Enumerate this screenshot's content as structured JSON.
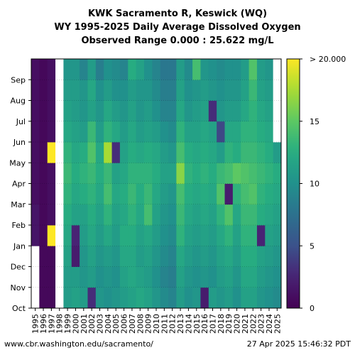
{
  "title_lines": [
    "KWK Sacramento R, Keswick (WQ)",
    "WY 1995-2025 Daily Average Dissolved Oxygen",
    "Observed Range 0.000 : 25.622 mg/L"
  ],
  "footer": {
    "source": "www.cbr.washington.edu/sacramento/",
    "timestamp": "27 Apr 2025 15:46:32 PDT"
  },
  "chart_data": {
    "type": "heatmap",
    "title": "KWK Sacramento R, Keswick (WQ)",
    "subtitle": "WY 1995-2025 Daily Average Dissolved Oxygen",
    "note": "Observed Range 0.000 : 25.622 mg/L",
    "x": [
      "1995",
      "1996",
      "1997",
      "1998",
      "1999",
      "2000",
      "2001",
      "2002",
      "2003",
      "2004",
      "2005",
      "2006",
      "2007",
      "2008",
      "2009",
      "2010",
      "2011",
      "2012",
      "2013",
      "2014",
      "2015",
      "2016",
      "2017",
      "2018",
      "2019",
      "2020",
      "2021",
      "2022",
      "2023",
      "2024",
      "2025"
    ],
    "y": [
      "Oct",
      "Nov",
      "Dec",
      "Jan",
      "Feb",
      "Mar",
      "Apr",
      "May",
      "Jun",
      "Jul",
      "Aug",
      "Sep"
    ],
    "values": [
      [
        null,
        null,
        null,
        1.5,
        1.5,
        1.0,
        1.0,
        1.0,
        1.0,
        1.0,
        1.0,
        1.0
      ],
      [
        0.5,
        0.5,
        0.5,
        0.5,
        0.5,
        0.5,
        0.5,
        0.5,
        0.5,
        0.5,
        0.5,
        0.5
      ],
      [
        0.5,
        0.5,
        0.5,
        22.0,
        1.0,
        1.0,
        1.0,
        22.0,
        1.0,
        1.0,
        1.0,
        1.0
      ],
      [
        null,
        null,
        null,
        null,
        null,
        null,
        null,
        null,
        null,
        null,
        null,
        null
      ],
      [
        11.0,
        11.0,
        11.5,
        12.0,
        12.5,
        13.0,
        13.5,
        13.0,
        12.0,
        11.5,
        11.0,
        10.5
      ],
      [
        11.5,
        11.0,
        2.0,
        2.5,
        11.5,
        12.0,
        12.5,
        12.0,
        11.5,
        11.0,
        11.0,
        10.5
      ],
      [
        11.0,
        10.5,
        10.5,
        11.0,
        11.5,
        12.5,
        13.0,
        12.5,
        11.0,
        10.5,
        10.5,
        9.0
      ],
      [
        3.0,
        11.0,
        11.5,
        12.0,
        12.5,
        13.0,
        13.5,
        14.5,
        13.5,
        11.5,
        12.0,
        11.0
      ],
      [
        10.5,
        10.0,
        10.5,
        11.0,
        11.5,
        12.0,
        12.5,
        12.0,
        11.0,
        10.5,
        10.0,
        8.5
      ],
      [
        10.0,
        10.5,
        11.0,
        12.0,
        13.0,
        14.0,
        13.5,
        17.5,
        13.0,
        12.0,
        11.0,
        10.0
      ],
      [
        10.5,
        10.0,
        10.5,
        11.0,
        11.5,
        12.0,
        11.5,
        3.0,
        12.0,
        11.0,
        10.0,
        9.5
      ],
      [
        11.0,
        11.5,
        12.0,
        12.5,
        12.0,
        12.5,
        12.0,
        11.5,
        11.0,
        10.5,
        10.0,
        9.0
      ],
      [
        11.5,
        12.0,
        12.0,
        12.5,
        13.0,
        13.5,
        13.0,
        12.5,
        12.0,
        11.5,
        11.0,
        12.5
      ],
      [
        12.0,
        11.5,
        11.0,
        11.5,
        12.0,
        12.5,
        13.0,
        12.0,
        11.0,
        10.5,
        10.5,
        11.5
      ],
      [
        11.5,
        11.0,
        11.5,
        12.0,
        14.0,
        13.5,
        13.0,
        12.5,
        11.5,
        11.0,
        10.5,
        10.0
      ],
      [
        10.5,
        10.0,
        10.5,
        11.0,
        11.5,
        12.0,
        12.5,
        12.0,
        11.0,
        10.0,
        9.5,
        9.0
      ],
      [
        9.5,
        9.0,
        9.5,
        10.0,
        10.5,
        11.0,
        11.5,
        11.0,
        10.0,
        9.0,
        8.5,
        8.0
      ],
      [
        9.0,
        8.5,
        9.0,
        9.5,
        10.0,
        10.5,
        11.5,
        10.5,
        9.5,
        9.0,
        8.5,
        8.0
      ],
      [
        11.0,
        11.5,
        12.0,
        13.0,
        13.5,
        14.0,
        16.5,
        14.0,
        13.0,
        12.0,
        11.5,
        11.0
      ],
      [
        10.0,
        10.5,
        11.0,
        11.5,
        12.0,
        12.5,
        13.0,
        12.5,
        11.5,
        10.5,
        10.0,
        9.5
      ],
      [
        10.5,
        10.0,
        10.5,
        11.0,
        11.5,
        12.0,
        12.5,
        12.0,
        11.5,
        11.0,
        10.5,
        14.0
      ],
      [
        2.0,
        10.5,
        11.0,
        11.5,
        12.0,
        12.5,
        13.0,
        12.5,
        12.0,
        11.5,
        11.0,
        10.5
      ],
      [
        11.0,
        10.0,
        10.5,
        11.0,
        11.5,
        12.0,
        12.5,
        12.0,
        11.5,
        3.0,
        10.5,
        10.0
      ],
      [
        10.5,
        11.0,
        11.5,
        12.0,
        13.0,
        14.5,
        13.5,
        11.0,
        4.5,
        10.5,
        10.0,
        9.5
      ],
      [
        11.0,
        11.5,
        12.0,
        13.0,
        14.5,
        2.0,
        14.0,
        13.0,
        12.0,
        11.0,
        10.5,
        10.0
      ],
      [
        10.0,
        10.5,
        11.0,
        11.5,
        12.0,
        13.0,
        15.0,
        12.5,
        12.0,
        11.0,
        10.5,
        10.0
      ],
      [
        11.5,
        12.0,
        12.5,
        13.0,
        13.5,
        14.0,
        14.5,
        13.5,
        13.0,
        12.0,
        11.5,
        11.0
      ],
      [
        11.5,
        12.0,
        12.5,
        13.0,
        13.5,
        14.5,
        14.0,
        13.5,
        13.0,
        13.0,
        13.5,
        14.5
      ],
      [
        10.5,
        11.0,
        11.5,
        2.5,
        12.5,
        13.0,
        13.5,
        13.0,
        12.5,
        12.0,
        11.5,
        11.0
      ],
      [
        10.0,
        10.5,
        11.0,
        11.5,
        12.0,
        12.5,
        13.0,
        12.5,
        12.0,
        11.5,
        11.0,
        10.5
      ],
      [
        9.5,
        10.0,
        10.5,
        11.0,
        11.5,
        12.0,
        12.5,
        11.0,
        null,
        null,
        null,
        null
      ]
    ],
    "colorbar": {
      "ticks": [
        "0",
        "5",
        "10",
        "15",
        "> 20.000"
      ],
      "tick_values": [
        0,
        5,
        10,
        15,
        20
      ],
      "range": [
        0,
        20
      ],
      "colormap": "viridis"
    },
    "grid": true,
    "colors": {
      "low": "#440154",
      "mid": "#21918c",
      "high": "#fde725",
      "missing": "#ffffff"
    }
  }
}
